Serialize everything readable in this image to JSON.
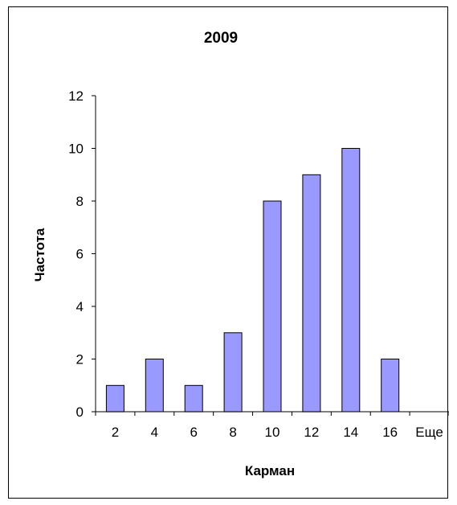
{
  "chart_data": {
    "type": "bar",
    "title": "2009",
    "xlabel": "Карман",
    "ylabel": "Частота",
    "categories": [
      "2",
      "4",
      "6",
      "8",
      "10",
      "12",
      "14",
      "16",
      "Еще"
    ],
    "values": [
      1,
      2,
      1,
      3,
      8,
      9,
      10,
      2,
      0
    ],
    "ylim": [
      0,
      12
    ],
    "yticks": [
      "0",
      "2",
      "4",
      "6",
      "8",
      "10",
      "12"
    ],
    "grid": false,
    "legend": "none",
    "colors": {
      "bar_fill": "#9999ff",
      "bar_stroke": "#000000",
      "axis": "#000000",
      "background": "#ffffff"
    }
  }
}
